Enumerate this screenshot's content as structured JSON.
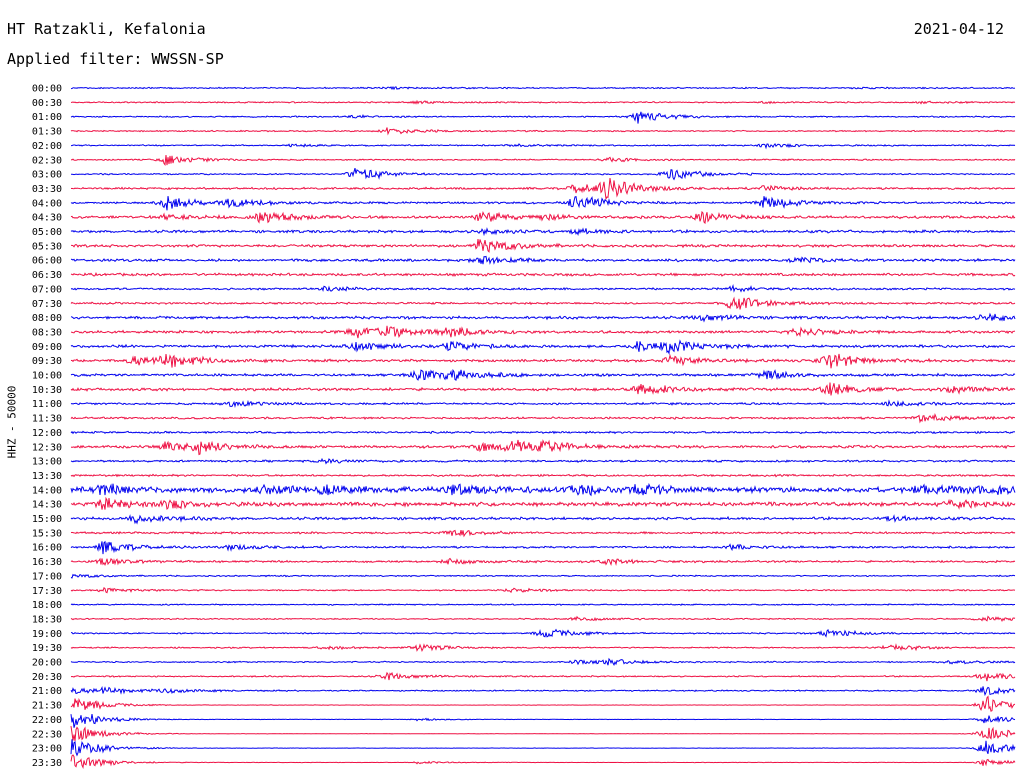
{
  "header": {
    "station": "HT Ratzakli, Kefalonia",
    "date": "2021-04-12",
    "filter": "Applied filter: WWSSN-SP"
  },
  "chart_data": {
    "type": "line",
    "title": "HT Ratzakli, Kefalonia",
    "subtitle": "Applied filter: WWSSN-SP",
    "ylabel": "HHZ - 50000",
    "xlabel": "",
    "row_labels": [
      "00:00",
      "00:30",
      "01:00",
      "01:30",
      "02:00",
      "02:30",
      "03:00",
      "03:30",
      "04:00",
      "04:30",
      "05:00",
      "05:30",
      "06:00",
      "06:30",
      "07:00",
      "07:30",
      "08:00",
      "08:30",
      "09:00",
      "09:30",
      "10:00",
      "10:30",
      "11:00",
      "11:30",
      "12:00",
      "12:30",
      "13:00",
      "13:30",
      "14:00",
      "14:30",
      "15:00",
      "15:30",
      "16:00",
      "16:30",
      "17:00",
      "17:30",
      "18:00",
      "18:30",
      "19:00",
      "19:30",
      "20:00",
      "20:30",
      "21:00",
      "21:30",
      "22:00",
      "22:30",
      "23:00",
      "23:30"
    ],
    "colors": [
      "#0000ee",
      "#ee1144"
    ],
    "row_minutes": 30,
    "noise_level": [
      1,
      1,
      1,
      1,
      1,
      1,
      1,
      1.5,
      1.5,
      2,
      2,
      2,
      2,
      2,
      1.5,
      1.5,
      2,
      2,
      2,
      2,
      2,
      2,
      1.5,
      1.5,
      1.5,
      2,
      1.5,
      1.5,
      4,
      3,
      2,
      1.5,
      1.5,
      1.5,
      1,
      1,
      1,
      1,
      1,
      1,
      1,
      1,
      1,
      0.3,
      0.3,
      0.3,
      0.3,
      0.3
    ],
    "events": [
      {
        "row": 0,
        "minute": 10,
        "amp": 2
      },
      {
        "row": 0,
        "minute": 25,
        "amp": 1.5
      },
      {
        "row": 1,
        "minute": 11,
        "amp": 3
      },
      {
        "row": 1,
        "minute": 22,
        "amp": 2
      },
      {
        "row": 1,
        "minute": 27,
        "amp": 2
      },
      {
        "row": 2,
        "minute": 9,
        "amp": 3
      },
      {
        "row": 2,
        "minute": 18,
        "amp": 14
      },
      {
        "row": 3,
        "minute": 10,
        "amp": 8
      },
      {
        "row": 4,
        "minute": 7,
        "amp": 3
      },
      {
        "row": 4,
        "minute": 14,
        "amp": 3
      },
      {
        "row": 4,
        "minute": 22,
        "amp": 5
      },
      {
        "row": 5,
        "minute": 3,
        "amp": 12
      },
      {
        "row": 5,
        "minute": 17,
        "amp": 5
      },
      {
        "row": 6,
        "minute": 9,
        "amp": 16
      },
      {
        "row": 6,
        "minute": 19,
        "amp": 14
      },
      {
        "row": 7,
        "minute": 16,
        "amp": 12
      },
      {
        "row": 7,
        "minute": 17,
        "amp": 22
      },
      {
        "row": 7,
        "minute": 22,
        "amp": 6
      },
      {
        "row": 8,
        "minute": 3,
        "amp": 16
      },
      {
        "row": 8,
        "minute": 5,
        "amp": 10
      },
      {
        "row": 8,
        "minute": 16,
        "amp": 18
      },
      {
        "row": 8,
        "minute": 22,
        "amp": 16
      },
      {
        "row": 9,
        "minute": 3,
        "amp": 7
      },
      {
        "row": 9,
        "minute": 6,
        "amp": 14
      },
      {
        "row": 9,
        "minute": 13,
        "amp": 10
      },
      {
        "row": 9,
        "minute": 15,
        "amp": 6
      },
      {
        "row": 9,
        "minute": 20,
        "amp": 12
      },
      {
        "row": 10,
        "minute": 13,
        "amp": 6
      },
      {
        "row": 10,
        "minute": 16,
        "amp": 6
      },
      {
        "row": 11,
        "minute": 13,
        "amp": 18
      },
      {
        "row": 12,
        "minute": 13,
        "amp": 8
      },
      {
        "row": 12,
        "minute": 23,
        "amp": 6
      },
      {
        "row": 14,
        "minute": 8,
        "amp": 6
      },
      {
        "row": 14,
        "minute": 21,
        "amp": 6
      },
      {
        "row": 15,
        "minute": 21,
        "amp": 18
      },
      {
        "row": 16,
        "minute": 20,
        "amp": 8
      },
      {
        "row": 16,
        "minute": 29,
        "amp": 10
      },
      {
        "row": 17,
        "minute": 9,
        "amp": 12
      },
      {
        "row": 17,
        "minute": 10,
        "amp": 10
      },
      {
        "row": 17,
        "minute": 12,
        "amp": 12
      },
      {
        "row": 17,
        "minute": 23,
        "amp": 10
      },
      {
        "row": 18,
        "minute": 9,
        "amp": 12
      },
      {
        "row": 18,
        "minute": 12,
        "amp": 10
      },
      {
        "row": 18,
        "minute": 18,
        "amp": 10
      },
      {
        "row": 18,
        "minute": 19,
        "amp": 12
      },
      {
        "row": 19,
        "minute": 2,
        "amp": 10
      },
      {
        "row": 19,
        "minute": 3,
        "amp": 14
      },
      {
        "row": 19,
        "minute": 19,
        "amp": 10
      },
      {
        "row": 19,
        "minute": 24,
        "amp": 20
      },
      {
        "row": 20,
        "minute": 11,
        "amp": 12
      },
      {
        "row": 20,
        "minute": 12,
        "amp": 10
      },
      {
        "row": 20,
        "minute": 22,
        "amp": 10
      },
      {
        "row": 21,
        "minute": 18,
        "amp": 14
      },
      {
        "row": 21,
        "minute": 24,
        "amp": 18
      },
      {
        "row": 21,
        "minute": 28,
        "amp": 8
      },
      {
        "row": 22,
        "minute": 5,
        "amp": 8
      },
      {
        "row": 22,
        "minute": 26,
        "amp": 6
      },
      {
        "row": 23,
        "minute": 27,
        "amp": 10
      },
      {
        "row": 25,
        "minute": 3,
        "amp": 10
      },
      {
        "row": 25,
        "minute": 4,
        "amp": 12
      },
      {
        "row": 25,
        "minute": 13,
        "amp": 10
      },
      {
        "row": 25,
        "minute": 14,
        "amp": 12
      },
      {
        "row": 25,
        "minute": 15,
        "amp": 10
      },
      {
        "row": 26,
        "minute": 8,
        "amp": 5
      },
      {
        "row": 28,
        "minute": 1,
        "amp": 12
      },
      {
        "row": 28,
        "minute": 6,
        "amp": 10
      },
      {
        "row": 28,
        "minute": 8,
        "amp": 10
      },
      {
        "row": 28,
        "minute": 12,
        "amp": 12
      },
      {
        "row": 28,
        "minute": 16,
        "amp": 10
      },
      {
        "row": 28,
        "minute": 18,
        "amp": 10
      },
      {
        "row": 28,
        "minute": 27,
        "amp": 12
      },
      {
        "row": 28,
        "minute": 29,
        "amp": 10
      },
      {
        "row": 29,
        "minute": 1,
        "amp": 12
      },
      {
        "row": 29,
        "minute": 3,
        "amp": 8
      },
      {
        "row": 29,
        "minute": 28,
        "amp": 8
      },
      {
        "row": 30,
        "minute": 2,
        "amp": 10
      },
      {
        "row": 30,
        "minute": 26,
        "amp": 5
      },
      {
        "row": 31,
        "minute": 12,
        "amp": 8
      },
      {
        "row": 32,
        "minute": 1,
        "amp": 14
      },
      {
        "row": 32,
        "minute": 5,
        "amp": 6
      },
      {
        "row": 32,
        "minute": 21,
        "amp": 6
      },
      {
        "row": 33,
        "minute": 1,
        "amp": 8
      },
      {
        "row": 33,
        "minute": 12,
        "amp": 6
      },
      {
        "row": 33,
        "minute": 17,
        "amp": 6
      },
      {
        "row": 34,
        "minute": 0,
        "amp": 4
      },
      {
        "row": 35,
        "minute": 1,
        "amp": 6
      },
      {
        "row": 35,
        "minute": 14,
        "amp": 4
      },
      {
        "row": 37,
        "minute": 16,
        "amp": 5
      },
      {
        "row": 37,
        "minute": 29,
        "amp": 6
      },
      {
        "row": 38,
        "minute": 15,
        "amp": 12
      },
      {
        "row": 38,
        "minute": 24,
        "amp": 10
      },
      {
        "row": 39,
        "minute": 8,
        "amp": 4
      },
      {
        "row": 39,
        "minute": 11,
        "amp": 8
      },
      {
        "row": 39,
        "minute": 26,
        "amp": 8
      },
      {
        "row": 40,
        "minute": 16,
        "amp": 6
      },
      {
        "row": 40,
        "minute": 17,
        "amp": 6
      },
      {
        "row": 40,
        "minute": 28,
        "amp": 5
      },
      {
        "row": 41,
        "minute": 10,
        "amp": 8
      },
      {
        "row": 41,
        "minute": 29,
        "amp": 12
      },
      {
        "row": 42,
        "minute": 0,
        "amp": 6
      },
      {
        "row": 42,
        "minute": 1,
        "amp": 6
      },
      {
        "row": 42,
        "minute": 3,
        "amp": 5
      },
      {
        "row": 42,
        "minute": 29,
        "amp": 12
      },
      {
        "row": 43,
        "minute": 0,
        "amp": 20
      },
      {
        "row": 43,
        "minute": 29,
        "amp": 20
      },
      {
        "row": 44,
        "minute": 0,
        "amp": 22
      },
      {
        "row": 44,
        "minute": 11,
        "amp": 3
      },
      {
        "row": 44,
        "minute": 29,
        "amp": 10
      },
      {
        "row": 45,
        "minute": 0,
        "amp": 22
      },
      {
        "row": 45,
        "minute": 29,
        "amp": 18
      },
      {
        "row": 46,
        "minute": 0,
        "amp": 22
      },
      {
        "row": 46,
        "minute": 29,
        "amp": 18
      },
      {
        "row": 47,
        "minute": 0,
        "amp": 22
      },
      {
        "row": 47,
        "minute": 11,
        "amp": 3
      },
      {
        "row": 47,
        "minute": 29,
        "amp": 8
      }
    ]
  }
}
